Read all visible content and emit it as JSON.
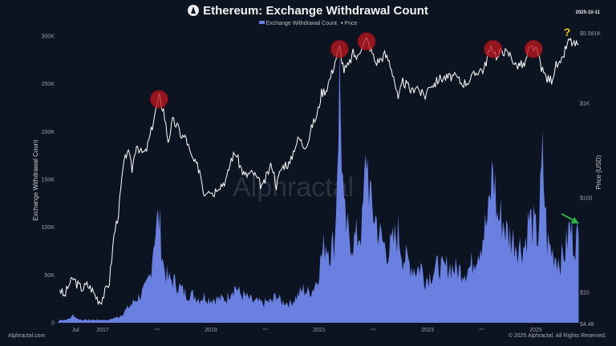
{
  "header": {
    "title": "Ethereum: Exchange Withdrawal Count",
    "date": "2025-10-11"
  },
  "legend": {
    "series1": "Exchange Withdrawal Count",
    "series2": "Price"
  },
  "footer": {
    "left": "Alphractal.com",
    "right": "© 2025 Alphractal. All Rights Reserved."
  },
  "watermark": "Alphractal",
  "chart_data": {
    "type": "area+line",
    "title": "Ethereum: Exchange Withdrawal Count",
    "ylabel": "Exchange Withdrawal Count",
    "y2label": "Price (USD)",
    "ylim": [
      0,
      300000
    ],
    "y2lim": [
      4.48,
      5581
    ],
    "y2scale": "log",
    "yticks": [
      "0",
      "50K",
      "100K",
      "150K",
      "200K",
      "250K",
      "300K"
    ],
    "y2ticks": [
      "$4.48",
      "$10",
      "$100",
      "$1K",
      "$5.581K"
    ],
    "xticks": [
      "Jul",
      "2017",
      "2018",
      "2019",
      "2020",
      "2021",
      "2022",
      "2023",
      "2024",
      "2025"
    ],
    "grid": false,
    "legend_position": "top-center",
    "colors": {
      "withdrawals": "#6a80e0",
      "price": "#ffffff",
      "peak_marker": "#c0161c",
      "question": "#f5c518",
      "arrow": "#2bb34a",
      "background": "#0d1421"
    },
    "start": "2016-03",
    "interval": "monthly",
    "series": [
      {
        "name": "Exchange Withdrawal Count",
        "values": [
          3000,
          3000,
          4000,
          8000,
          4000,
          3000,
          3000,
          3000,
          3000,
          3000,
          3000,
          3000,
          5000,
          6000,
          10000,
          15000,
          20000,
          25000,
          30000,
          35000,
          50000,
          95000,
          110000,
          60000,
          45000,
          45000,
          40000,
          35000,
          30000,
          30000,
          28000,
          25000,
          28000,
          25000,
          25000,
          25000,
          25000,
          25000,
          35000,
          38000,
          30000,
          28000,
          25000,
          22000,
          22000,
          20000,
          22000,
          22000,
          30000,
          22000,
          22000,
          20000,
          25000,
          30000,
          35000,
          32000,
          35000,
          45000,
          70000,
          85000,
          75000,
          90000,
          255000,
          110000,
          90000,
          85000,
          90000,
          100000,
          180000,
          120000,
          110000,
          90000,
          80000,
          75000,
          85000,
          95000,
          70000,
          65000,
          60000,
          55000,
          60000,
          45000,
          50000,
          55000,
          60000,
          55000,
          60000,
          58000,
          55000,
          55000,
          55000,
          58000,
          70000,
          80000,
          95000,
          110000,
          165000,
          110000,
          110000,
          95000,
          90000,
          85000,
          80000,
          80000,
          110000,
          100000,
          90000,
          170000,
          85000,
          75000,
          70000,
          65000,
          75000,
          100000,
          85000,
          90000
        ]
      },
      {
        "name": "Price",
        "values": [
          11,
          9,
          12,
          14,
          12,
          11,
          12,
          11,
          9,
          8,
          10,
          13,
          40,
          70,
          200,
          330,
          200,
          380,
          300,
          300,
          450,
          750,
          1150,
          850,
          400,
          650,
          580,
          450,
          430,
          280,
          230,
          200,
          110,
          130,
          110,
          135,
          140,
          160,
          260,
          300,
          215,
          170,
          180,
          180,
          150,
          130,
          180,
          230,
          135,
          200,
          230,
          225,
          345,
          430,
          360,
          390,
          600,
          740,
          1300,
          1400,
          1900,
          2800,
          3900,
          2250,
          2500,
          3400,
          3000,
          4300,
          4700,
          3700,
          2700,
          2900,
          3300,
          2800,
          1950,
          1070,
          1700,
          1550,
          1330,
          1570,
          1290,
          1200,
          1590,
          1600,
          1820,
          1870,
          1870,
          1930,
          1860,
          1650,
          1670,
          1800,
          2050,
          2280,
          2280,
          3400,
          3900,
          3000,
          3750,
          3400,
          3230,
          2500,
          2600,
          2500,
          3700,
          3900,
          3300,
          2200,
          1820,
          1800,
          2530,
          2500,
          3700,
          4700,
          4150,
          4200
        ]
      }
    ],
    "highlighted_peaks": [
      "2018-01",
      "2021-05",
      "2021-11",
      "2024-03",
      "2024-12"
    ],
    "annotations": {
      "question_mark": "?",
      "arrow": "down-right"
    }
  }
}
